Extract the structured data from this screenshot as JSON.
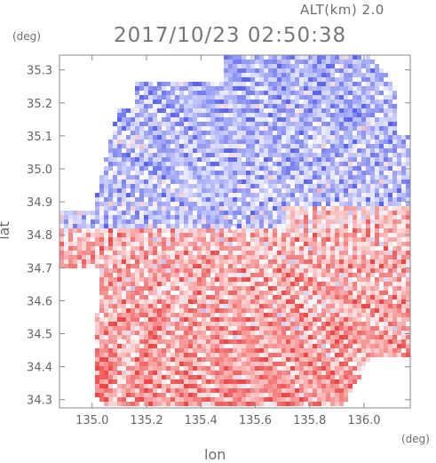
{
  "header": {
    "alt_label": "ALT(km)  2.0",
    "title": "2017/10/23 02:50:38",
    "unit_y": "(deg)",
    "unit_x": "(deg)"
  },
  "chart_data": {
    "type": "heatmap",
    "title": "2017/10/23 02:50:38",
    "subtitle": "ALT(km)  2.0",
    "xlabel": "lon",
    "ylabel": "lat",
    "xunit": "(deg)",
    "yunit": "(deg)",
    "xlim": [
      134.88,
      136.17
    ],
    "ylim": [
      34.275,
      35.345
    ],
    "x_ticks": [
      135.0,
      135.2,
      135.4,
      135.6,
      135.8,
      136.0
    ],
    "x_tick_labels": [
      "135.0",
      "135.2",
      "135.4",
      "135.6",
      "135.8",
      "136.0"
    ],
    "y_ticks": [
      34.3,
      34.4,
      34.5,
      34.6,
      34.7,
      34.8,
      34.9,
      35.0,
      35.1,
      35.2,
      35.3
    ],
    "y_tick_labels": [
      "34.3",
      "34.4",
      "34.5",
      "34.6",
      "34.7",
      "34.8",
      "34.9",
      "35.0",
      "35.1",
      "35.2",
      "35.3"
    ],
    "radar_center": {
      "lon": 135.52,
      "lat": 34.82
    },
    "colormap": {
      "negative": "#5a64f0",
      "zero": "#ffffff",
      "positive": "#f04646"
    },
    "grid": false,
    "legend": "none"
  }
}
